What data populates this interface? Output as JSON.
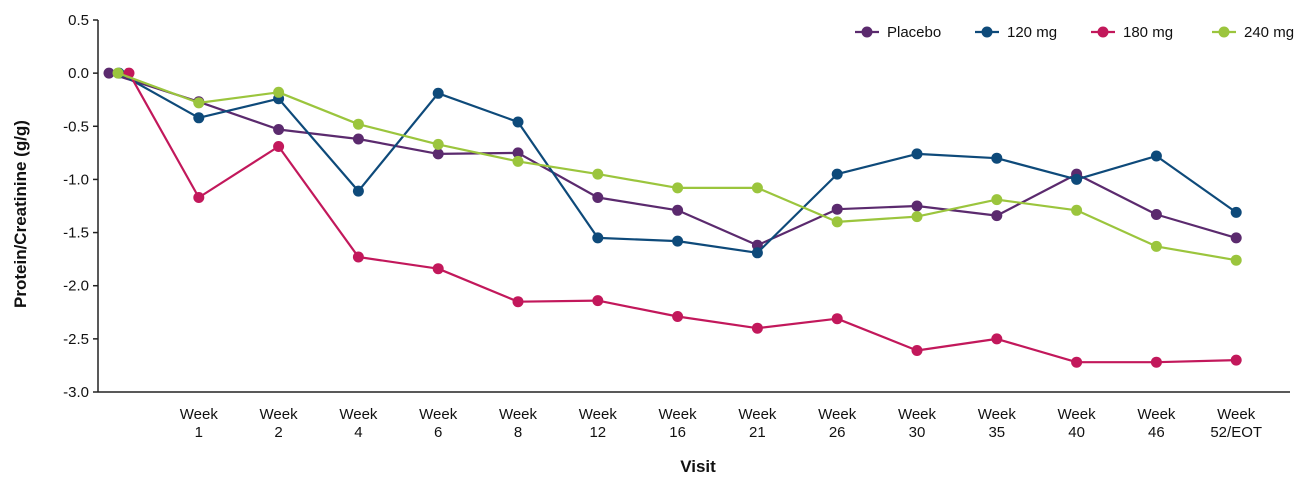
{
  "chart_data": {
    "type": "line",
    "xlabel": "Visit",
    "ylabel": "Protein/Creatinine (g/g)",
    "ylim": [
      -3.0,
      0.5
    ],
    "yticks": [
      "0.5",
      "0.0",
      "-0.5",
      "-1.0",
      "-1.5",
      "-2.0",
      "-2.5",
      "-3.0"
    ],
    "categories": [
      "",
      "Week\n1",
      "Week\n2",
      "Week\n4",
      "Week\n6",
      "Week\n8",
      "Week\n12",
      "Week\n16",
      "Week\n21",
      "Week\n26",
      "Week\n30",
      "Week\n35",
      "Week\n40",
      "Week\n46",
      "Week\n52/EOT"
    ],
    "grid": false,
    "legend_position": "top-right",
    "series": [
      {
        "name": "Placebo",
        "color": "#5b2a6e",
        "values": [
          0.0,
          -0.27,
          -0.53,
          -0.62,
          -0.76,
          -0.75,
          -1.17,
          -1.29,
          -1.62,
          -1.28,
          -1.25,
          -1.34,
          -0.95,
          -1.33,
          -1.55
        ]
      },
      {
        "name": "120 mg",
        "color": "#0e4a7a",
        "values": [
          0.0,
          -0.42,
          -0.24,
          -1.11,
          -0.19,
          -0.46,
          -1.55,
          -1.58,
          -1.69,
          -0.95,
          -0.76,
          -0.8,
          -1.0,
          -0.78,
          -1.31
        ]
      },
      {
        "name": "180 mg",
        "color": "#c2185b",
        "values": [
          0.0,
          -1.17,
          -0.69,
          -1.73,
          -1.84,
          -2.15,
          -2.14,
          -2.29,
          -2.4,
          -2.31,
          -2.61,
          -2.5,
          -2.72,
          -2.72,
          -2.7
        ]
      },
      {
        "name": "240 mg",
        "color": "#9bc53d",
        "values": [
          0.0,
          -0.28,
          -0.18,
          -0.48,
          -0.67,
          -0.83,
          -0.95,
          -1.08,
          -1.08,
          -1.4,
          -1.35,
          -1.19,
          -1.29,
          -1.63,
          -1.76
        ]
      }
    ]
  }
}
